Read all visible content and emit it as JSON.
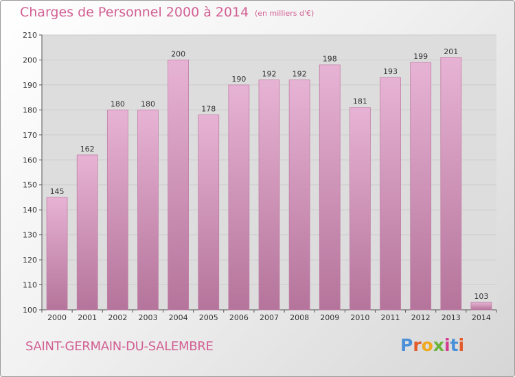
{
  "header": {
    "title": "Charges de Personnel 2000 à 2014",
    "subtitle": "(en milliers d'€)"
  },
  "footer": {
    "commune": "SAINT-GERMAIN-DU-SALEMBRE",
    "logo": "Proxiti",
    "logo_colors": [
      "#4a90d9",
      "#e35a2b",
      "#f0a81c",
      "#6bb43a",
      "#d23c8f",
      "#4a90d9",
      "#e35a2b"
    ]
  },
  "colors": {
    "bar_light": "#e7b3d4",
    "bar_dark": "#b5749b",
    "bar_edge": "#c07fa6",
    "grid": "#cccccc",
    "plot_bg": "#dddddd",
    "accent": "#d25f93"
  },
  "chart_data": {
    "type": "bar",
    "categories": [
      "2000",
      "2001",
      "2002",
      "2003",
      "2004",
      "2005",
      "2006",
      "2007",
      "2008",
      "2009",
      "2010",
      "2011",
      "2012",
      "2013",
      "2014"
    ],
    "values": [
      145,
      162,
      180,
      180,
      200,
      178,
      190,
      192,
      192,
      198,
      181,
      193,
      199,
      201,
      103
    ],
    "ylim": [
      100,
      210
    ],
    "yticks": [
      100,
      110,
      120,
      130,
      140,
      150,
      160,
      170,
      180,
      190,
      200,
      210
    ],
    "grid": true,
    "legend": "none"
  }
}
